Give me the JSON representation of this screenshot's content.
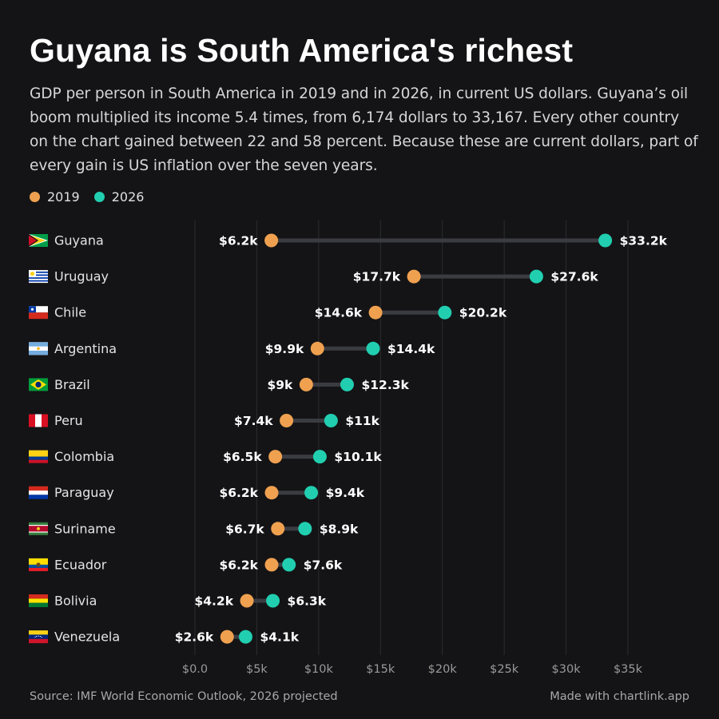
{
  "title": "Guyana is South America's richest",
  "subtitle": "GDP per person in South America in 2019 and in 2026, in current US dollars. Guyana’s oil boom multiplied its income 5.4 times, from 6,174 dollars to 33,167. Every other country on the chart gained between 22 and 58 percent. Because these are current dollars, part of every gain is US inflation over the seven years.",
  "legend": [
    {
      "label": "2019",
      "color": "#f0a150"
    },
    {
      "label": "2026",
      "color": "#21cfb0"
    }
  ],
  "source": "Source: IMF World Economic Outlook, 2026 projected",
  "credit": "Made with chartlink.app",
  "chart_data": {
    "type": "dumbbell",
    "xlim": [
      0,
      35000
    ],
    "xticks": [
      0,
      5000,
      10000,
      15000,
      20000,
      25000,
      30000,
      35000
    ],
    "xtick_labels": [
      "$0.0",
      "$5k",
      "$10k",
      "$15k",
      "$20k",
      "$25k",
      "$30k",
      "$35k"
    ],
    "grid": true,
    "legend_placement": "top-left",
    "colors": {
      "2019": "#f0a150",
      "2026": "#21cfb0",
      "connector": "#3a3c42",
      "grid": "#2c2d31"
    },
    "rows": [
      {
        "country": "Guyana",
        "flag": "guyana-flag",
        "v2019": 6174,
        "v2026": 33167,
        "label2019": "$6.2k",
        "label2026": "$33.2k"
      },
      {
        "country": "Uruguay",
        "flag": "uruguay-flag",
        "v2019": 17700,
        "v2026": 27600,
        "label2019": "$17.7k",
        "label2026": "$27.6k"
      },
      {
        "country": "Chile",
        "flag": "chile-flag",
        "v2019": 14600,
        "v2026": 20200,
        "label2019": "$14.6k",
        "label2026": "$20.2k"
      },
      {
        "country": "Argentina",
        "flag": "argentina-flag",
        "v2019": 9900,
        "v2026": 14400,
        "label2019": "$9.9k",
        "label2026": "$14.4k"
      },
      {
        "country": "Brazil",
        "flag": "brazil-flag",
        "v2019": 9000,
        "v2026": 12300,
        "label2019": "$9k",
        "label2026": "$12.3k"
      },
      {
        "country": "Peru",
        "flag": "peru-flag",
        "v2019": 7400,
        "v2026": 11000,
        "label2019": "$7.4k",
        "label2026": "$11k"
      },
      {
        "country": "Colombia",
        "flag": "colombia-flag",
        "v2019": 6500,
        "v2026": 10100,
        "label2019": "$6.5k",
        "label2026": "$10.1k"
      },
      {
        "country": "Paraguay",
        "flag": "paraguay-flag",
        "v2019": 6200,
        "v2026": 9400,
        "label2019": "$6.2k",
        "label2026": "$9.4k"
      },
      {
        "country": "Suriname",
        "flag": "suriname-flag",
        "v2019": 6700,
        "v2026": 8900,
        "label2019": "$6.7k",
        "label2026": "$8.9k"
      },
      {
        "country": "Ecuador",
        "flag": "ecuador-flag",
        "v2019": 6200,
        "v2026": 7600,
        "label2019": "$6.2k",
        "label2026": "$7.6k"
      },
      {
        "country": "Bolivia",
        "flag": "bolivia-flag",
        "v2019": 4200,
        "v2026": 6300,
        "label2019": "$4.2k",
        "label2026": "$6.3k"
      },
      {
        "country": "Venezuela",
        "flag": "venezuela-flag",
        "v2019": 2600,
        "v2026": 4100,
        "label2019": "$2.6k",
        "label2026": "$4.1k"
      }
    ]
  }
}
